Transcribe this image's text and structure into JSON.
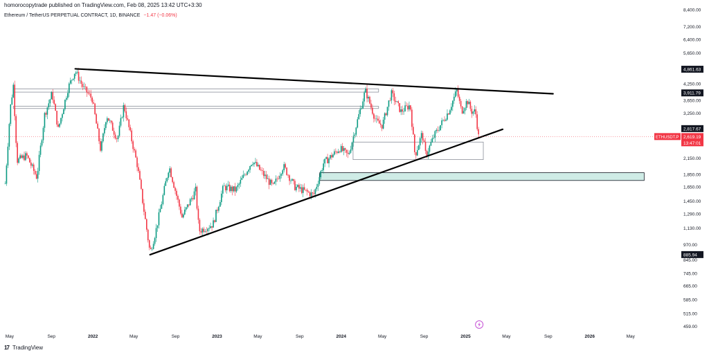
{
  "header": {
    "published_by": "homorocopytrade published on TradingView.com, Feb 08, 2025 13:42 UTC+3:30"
  },
  "symbol_bar": {
    "title": "Ethereum / TetherUS PERPETUAL CONTRACT, 1D, BINANCE",
    "change": "−1.47 (−0.06%)"
  },
  "footer": {
    "brand": "TradingView",
    "logo_glyph": "17"
  },
  "chart_data": {
    "type": "candlestick",
    "y_scale": "log",
    "ylim": [
      440,
      8400
    ],
    "x_range": [
      "2021-04-15",
      "2026-07-20"
    ],
    "y_ticks": [
      "8,400.00",
      "7,200.00",
      "6,400.00",
      "5,650.00",
      "4,250.00",
      "3,650.00",
      "3,250.00",
      "2,150.00",
      "1,850.00",
      "1,650.00",
      "1,450.00",
      "1,290.00",
      "1,130.00",
      "970.00",
      "845.00",
      "745.00",
      "665.00",
      "585.00",
      "515.00",
      "459.00"
    ],
    "x_ticks": [
      "May",
      "Sep",
      "2022",
      "May",
      "Sep",
      "2023",
      "May",
      "Sep",
      "2024",
      "May",
      "Sep",
      "2025",
      "May",
      "Sep",
      "2026",
      "May"
    ],
    "price_labels": [
      {
        "text": "4,861.63",
        "value": 4861.63,
        "style": "dark"
      },
      {
        "text": "3,911.79",
        "value": 3911.79,
        "style": "dark"
      },
      {
        "text": "2,817.67",
        "value": 2817.67,
        "style": "dark"
      },
      {
        "text": "885.94",
        "value": 885.94,
        "style": "dark"
      }
    ],
    "last_price": {
      "symbol": "ETHUSDT.P",
      "price": "2,619.19",
      "countdown": "13:47:01",
      "value": 2619.19
    },
    "trendlines": [
      {
        "name": "upper-resistance",
        "from": [
          "2021-11-10",
          4880
        ],
        "to": [
          "2025-09-15",
          3880
        ]
      },
      {
        "name": "lower-support",
        "from": [
          "2022-06-18",
          885
        ],
        "to": [
          "2025-04-20",
          2800
        ]
      }
    ],
    "zones": [
      {
        "name": "zone-top",
        "from": "2021-05-12",
        "to": "2024-04-20",
        "low": 3940,
        "high": 4060,
        "style": "outline"
      },
      {
        "name": "zone-mid",
        "from": "2021-05-12",
        "to": "2024-04-20",
        "low": 3390,
        "high": 3460,
        "style": "outline"
      },
      {
        "name": "zone-box",
        "from": "2024-02-05",
        "to": "2025-02-22",
        "low": 2120,
        "high": 2490,
        "style": "outline"
      },
      {
        "name": "zone-green",
        "from": "2023-10-30",
        "to": "2026-06-10",
        "low": 1750,
        "high": 1880,
        "style": "filled"
      }
    ],
    "price_path": [
      [
        "2021-04-18",
        1700
      ],
      [
        "2021-05-03",
        3400
      ],
      [
        "2021-05-12",
        4200
      ],
      [
        "2021-05-23",
        2100
      ],
      [
        "2021-06-20",
        2200
      ],
      [
        "2021-07-20",
        1800
      ],
      [
        "2021-08-12",
        3200
      ],
      [
        "2021-09-03",
        3900
      ],
      [
        "2021-09-21",
        2800
      ],
      [
        "2021-10-20",
        4100
      ],
      [
        "2021-11-10",
        4800
      ],
      [
        "2021-12-04",
        4100
      ],
      [
        "2021-12-30",
        3700
      ],
      [
        "2022-01-24",
        2300
      ],
      [
        "2022-02-10",
        3200
      ],
      [
        "2022-03-14",
        2550
      ],
      [
        "2022-04-02",
        3500
      ],
      [
        "2022-05-12",
        2000
      ],
      [
        "2022-06-18",
        900
      ],
      [
        "2022-07-05",
        1100
      ],
      [
        "2022-08-13",
        2000
      ],
      [
        "2022-09-20",
        1250
      ],
      [
        "2022-10-30",
        1600
      ],
      [
        "2022-11-09",
        1100
      ],
      [
        "2022-12-20",
        1170
      ],
      [
        "2023-01-20",
        1650
      ],
      [
        "2023-02-25",
        1600
      ],
      [
        "2023-04-15",
        2100
      ],
      [
        "2023-06-15",
        1650
      ],
      [
        "2023-07-15",
        2000
      ],
      [
        "2023-08-18",
        1650
      ],
      [
        "2023-10-12",
        1530
      ],
      [
        "2023-11-10",
        2050
      ],
      [
        "2023-12-28",
        2350
      ],
      [
        "2024-01-22",
        2200
      ],
      [
        "2024-03-12",
        4000
      ],
      [
        "2024-04-13",
        3000
      ],
      [
        "2024-05-01",
        2900
      ],
      [
        "2024-05-27",
        3900
      ],
      [
        "2024-06-25",
        3300
      ],
      [
        "2024-07-22",
        3500
      ],
      [
        "2024-08-05",
        2200
      ],
      [
        "2024-08-26",
        2700
      ],
      [
        "2024-09-06",
        2200
      ],
      [
        "2024-10-01",
        2650
      ],
      [
        "2024-11-12",
        3300
      ],
      [
        "2024-12-06",
        4000
      ],
      [
        "2024-12-20",
        3300
      ],
      [
        "2025-01-06",
        3650
      ],
      [
        "2025-01-18",
        3300
      ],
      [
        "2025-01-30",
        3300
      ],
      [
        "2025-02-08",
        2619
      ]
    ]
  }
}
